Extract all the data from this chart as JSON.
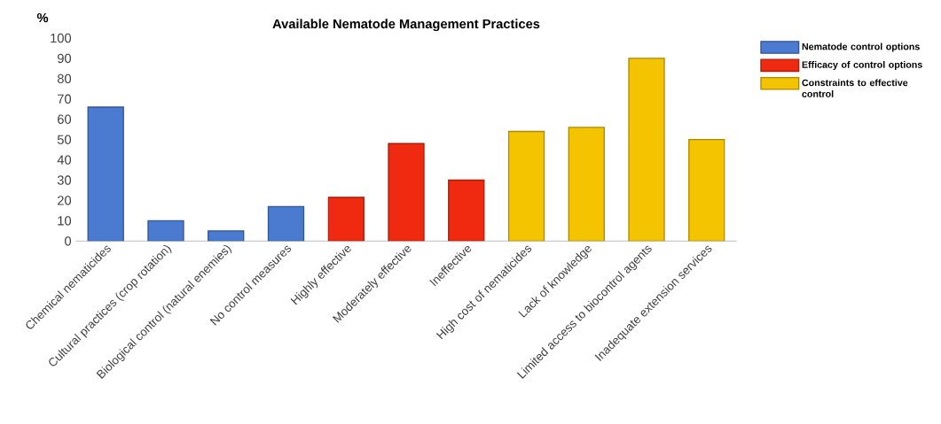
{
  "chart_data": {
    "type": "bar",
    "title": "Available Nematode Management Practices",
    "ylabel": "%",
    "categories": [
      "Chemical nematicides",
      "Cultural practices (crop rotation)",
      "Biological control (natural enemies)",
      "No control measures",
      "Highly effective",
      "Moderately effective",
      "Ineffective",
      "High cost of nematicides",
      "Lack of knowledge",
      "Limited access to biocontrol agents",
      "Inadequate extension services"
    ],
    "series": [
      {
        "name": "Nematode control options",
        "color": "#4a7bd0",
        "values": [
          66,
          10,
          5,
          17,
          null,
          null,
          null,
          null,
          null,
          null,
          null
        ]
      },
      {
        "name": "Efficacy of control options",
        "color": "#f02a10",
        "values": [
          null,
          null,
          null,
          null,
          21.5,
          48,
          30,
          null,
          null,
          null,
          null
        ]
      },
      {
        "name": "Constraints to effective control",
        "color": "#f5c400",
        "values": [
          null,
          null,
          null,
          null,
          null,
          null,
          null,
          54,
          56,
          90,
          50
        ]
      }
    ],
    "ylim": [
      0,
      100
    ],
    "yticks": [
      0,
      10,
      20,
      30,
      40,
      50,
      60,
      70,
      80,
      90,
      100
    ],
    "legend": "top right",
    "grid": false
  }
}
